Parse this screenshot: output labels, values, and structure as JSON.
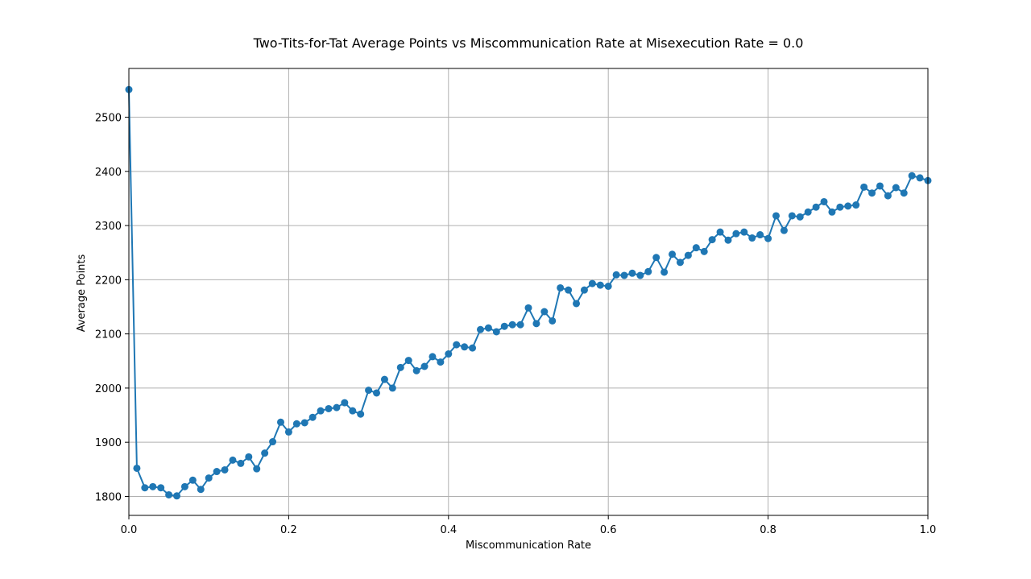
{
  "chart_data": {
    "type": "line",
    "title": "Two-Tits-for-Tat Average Points vs Miscommunication Rate at Misexecution Rate = 0.0",
    "xlabel": "Miscommunication Rate",
    "ylabel": "Average Points",
    "xlim": [
      0.0,
      1.0
    ],
    "ylim": [
      1765,
      2590
    ],
    "grid": true,
    "marker": "circle",
    "color": "#1f77b4",
    "xticks": [
      0.0,
      0.2,
      0.4,
      0.6,
      0.8,
      1.0
    ],
    "xtick_labels": [
      "0.0",
      "0.2",
      "0.4",
      "0.6",
      "0.8",
      "1.0"
    ],
    "yticks": [
      1800,
      1900,
      2000,
      2100,
      2200,
      2300,
      2400,
      2500
    ],
    "ytick_labels": [
      "1800",
      "1900",
      "2000",
      "2100",
      "2200",
      "2300",
      "2400",
      "2500"
    ],
    "series": [
      {
        "x": [
          0.0,
          0.01,
          0.02,
          0.03,
          0.04,
          0.05,
          0.06,
          0.07,
          0.08,
          0.09,
          0.1,
          0.11,
          0.12,
          0.13,
          0.14,
          0.15,
          0.16,
          0.17,
          0.18,
          0.19,
          0.2,
          0.21,
          0.22,
          0.23,
          0.24,
          0.25,
          0.26,
          0.27,
          0.28,
          0.29,
          0.3,
          0.31,
          0.32,
          0.33,
          0.34,
          0.35,
          0.36,
          0.37,
          0.38,
          0.39,
          0.4,
          0.41,
          0.42,
          0.43,
          0.44,
          0.45,
          0.46,
          0.47,
          0.48,
          0.49,
          0.5,
          0.51,
          0.52,
          0.53,
          0.54,
          0.55,
          0.56,
          0.57,
          0.58,
          0.59,
          0.6,
          0.61,
          0.62,
          0.63,
          0.64,
          0.65,
          0.66,
          0.67,
          0.68,
          0.69,
          0.7,
          0.71,
          0.72,
          0.73,
          0.74,
          0.75,
          0.76,
          0.77,
          0.78,
          0.79,
          0.8,
          0.81,
          0.82,
          0.83,
          0.84,
          0.85,
          0.86,
          0.87,
          0.88,
          0.89,
          0.9,
          0.91,
          0.92,
          0.93,
          0.94,
          0.95,
          0.96,
          0.97,
          0.98,
          0.99,
          1.0
        ],
        "y": [
          2551,
          1852,
          1816,
          1818,
          1816,
          1803,
          1801,
          1818,
          1830,
          1813,
          1834,
          1846,
          1849,
          1867,
          1861,
          1873,
          1851,
          1880,
          1901,
          1937,
          1919,
          1934,
          1936,
          1946,
          1958,
          1962,
          1964,
          1973,
          1958,
          1952,
          1996,
          1991,
          2016,
          2000,
          2038,
          2051,
          2032,
          2040,
          2058,
          2048,
          2063,
          2080,
          2076,
          2074,
          2108,
          2111,
          2104,
          2114,
          2117,
          2117,
          2148,
          2119,
          2141,
          2124,
          2185,
          2181,
          2156,
          2181,
          2193,
          2190,
          2188,
          2209,
          2208,
          2212,
          2208,
          2215,
          2241,
          2214,
          2247,
          2232,
          2245,
          2259,
          2252,
          2274,
          2288,
          2273,
          2285,
          2288,
          2277,
          2283,
          2276,
          2318,
          2291,
          2318,
          2316,
          2325,
          2334,
          2344,
          2325,
          2334,
          2336,
          2338,
          2371,
          2360,
          2373,
          2355,
          2370,
          2360,
          2392,
          2388,
          2383
        ]
      }
    ]
  }
}
